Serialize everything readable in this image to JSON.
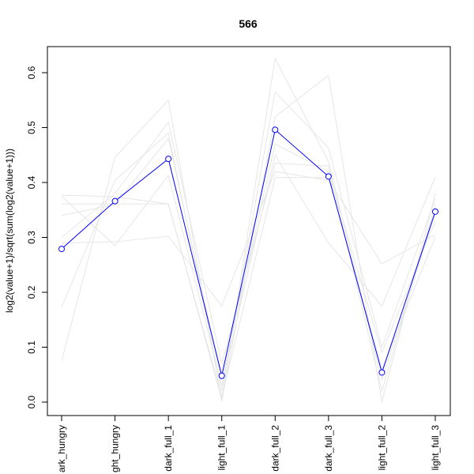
{
  "chart_data": {
    "type": "line",
    "title": "566",
    "xlabel": "",
    "ylabel": "log2(value+1)/sqrt(sum(log2(value+1)))",
    "categories": [
      "dark_hungry",
      "light_hungry",
      "dark_full_1",
      "light_full_1",
      "dark_full_2",
      "dark_full_3",
      "light_full_2",
      "light_full_3"
    ],
    "category_labels_visible": [
      "ark_hungry",
      "ght_hungry",
      "dark_full_1",
      "light_full_1",
      "dark_full_2",
      "dark_full_3",
      "light_full_2",
      "light_full_3"
    ],
    "ylim": [
      0,
      0.65
    ],
    "yticks": [
      0.0,
      0.1,
      0.2,
      0.3,
      0.4,
      0.5,
      0.6
    ],
    "ytick_labels": [
      "0.0",
      "0.1",
      "0.2",
      "0.3",
      "0.4",
      "0.5",
      "0.6"
    ],
    "grid": false,
    "highlight_color": "#0000ff",
    "background_color": "#e6e6e6",
    "series": [
      {
        "values": [
          0.279,
          0.366,
          0.443,
          0.048,
          0.496,
          0.411,
          0.054,
          0.347
        ],
        "color": "#0000ff",
        "markers": true
      },
      {
        "values": [
          0.377,
          0.374,
          0.361,
          0.005,
          0.626,
          0.438,
          0.04,
          0.345
        ],
        "color": "#e6e6e6"
      },
      {
        "values": [
          0.361,
          0.361,
          0.361,
          0.01,
          0.409,
          0.409,
          0.06,
          0.301
        ],
        "color": "#e6e6e6"
      },
      {
        "values": [
          0.075,
          0.446,
          0.55,
          0.002,
          0.52,
          0.595,
          0.0,
          0.38
        ],
        "color": "#e6e6e6"
      },
      {
        "values": [
          0.29,
          0.292,
          0.302,
          0.175,
          0.42,
          0.404,
          0.252,
          0.305
        ],
        "color": "#e6e6e6"
      },
      {
        "values": [
          0.173,
          0.404,
          0.49,
          0.02,
          0.565,
          0.463,
          0.1,
          0.37
        ],
        "color": "#e6e6e6"
      },
      {
        "values": [
          0.375,
          0.285,
          0.413,
          0.03,
          0.45,
          0.29,
          0.175,
          0.41
        ],
        "color": "#e6e6e6"
      },
      {
        "values": [
          0.3,
          0.38,
          0.51,
          0.07,
          0.435,
          0.43,
          0.02,
          0.36
        ],
        "color": "#e6e6e6"
      },
      {
        "values": [
          0.34,
          0.36,
          0.48,
          0.04,
          0.47,
          0.42,
          0.09,
          0.33
        ],
        "color": "#e6e6e6"
      }
    ]
  }
}
